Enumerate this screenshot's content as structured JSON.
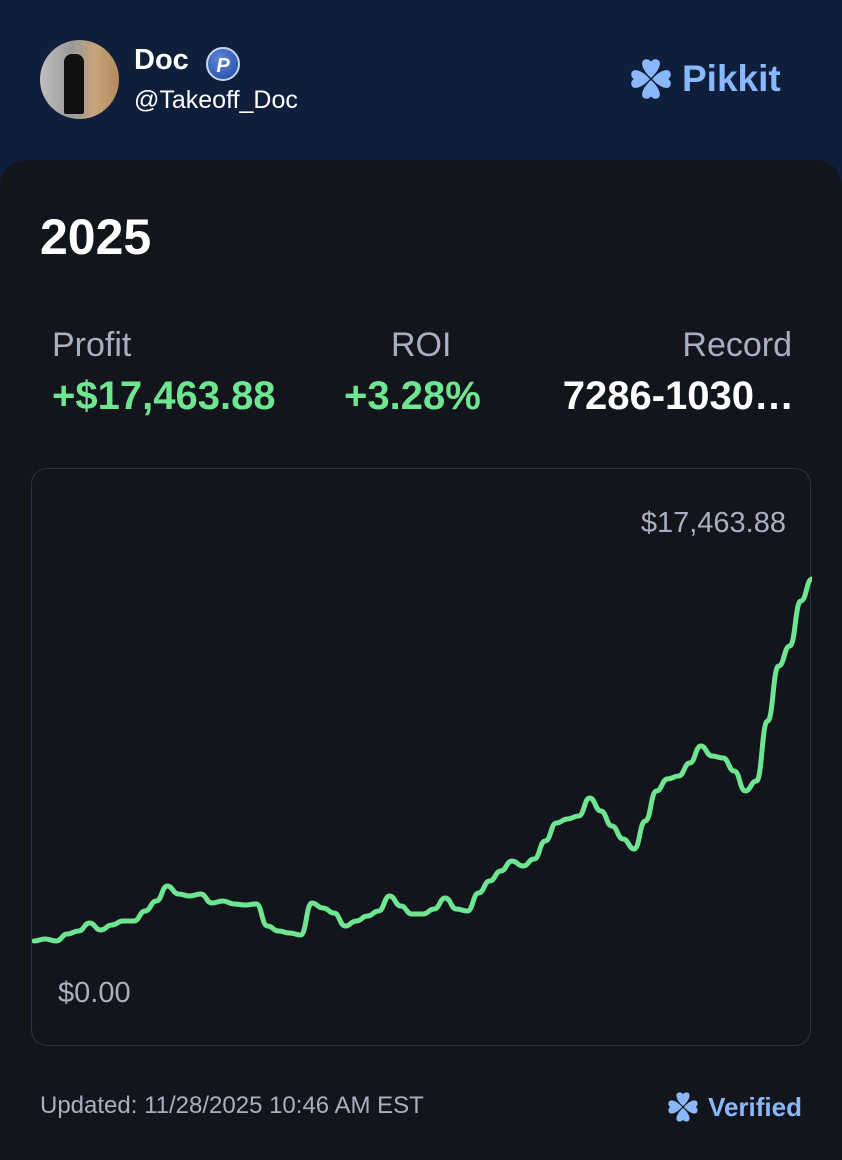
{
  "header": {
    "name": "Doc",
    "badge_letter": "P",
    "handle": "@Takeoff_Doc",
    "brand": "Pikkit"
  },
  "card": {
    "year": "2025",
    "stats": [
      {
        "label": "Profit",
        "value": "+$17,463.88"
      },
      {
        "label": "ROI",
        "value": "+3.28%"
      },
      {
        "label": "Record",
        "value": "7286-1030…"
      }
    ],
    "updated": "Updated: 11/28/2025 10:46 AM EST",
    "verified": "Verified"
  },
  "colors": {
    "accent": "#8ab8ff",
    "positive": "#6ee591",
    "background": "#12151c",
    "header": "#0f1e3a"
  },
  "chart_data": {
    "type": "line",
    "max_label": "$17,463.88",
    "min_label": "$0.00",
    "ylim": [
      0,
      17463.88
    ],
    "grid": false,
    "series": [
      {
        "color": "#6ee591",
        "values": [
          238,
          333,
          238,
          571,
          714,
          1095,
          761,
          999,
          1190,
          1190,
          1666,
          2142,
          2855,
          2475,
          2380,
          2475,
          2046,
          2142,
          1999,
          1951,
          1999,
          952,
          714,
          618,
          523,
          2046,
          1809,
          1570,
          952,
          1190,
          1428,
          1666,
          2380,
          1904,
          1523,
          1523,
          1761,
          2284,
          1761,
          1666,
          2522,
          3093,
          3569,
          4045,
          3807,
          4140,
          4997,
          5854,
          6044,
          6187,
          7043,
          6425,
          5711,
          5092,
          4616,
          5949,
          7376,
          7947,
          8090,
          8709,
          9518,
          9042,
          8947,
          8328,
          7376,
          7852,
          10708,
          13325,
          14277,
          16419,
          17463.88
        ]
      }
    ]
  }
}
